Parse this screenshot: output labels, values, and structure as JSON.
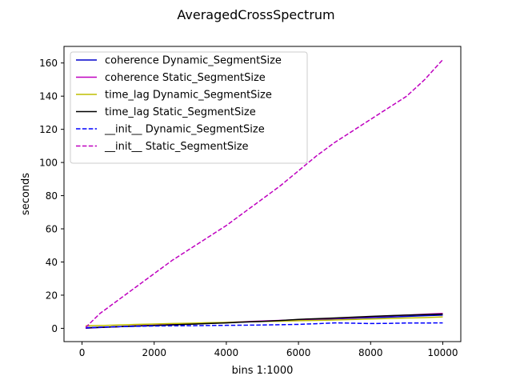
{
  "chart_data": {
    "type": "line",
    "title": "AveragedCrossSpectrum",
    "xlabel": "bins 1:1000",
    "ylabel": "seconds",
    "xlim": [
      -500,
      10500
    ],
    "ylim": [
      -8,
      170
    ],
    "xticks": [
      0,
      2000,
      4000,
      6000,
      8000,
      10000
    ],
    "yticks": [
      0,
      20,
      40,
      60,
      80,
      100,
      120,
      140,
      160
    ],
    "grid": false,
    "legend_position": "upper-left",
    "x": [
      100,
      500,
      1000,
      1500,
      2000,
      2500,
      3000,
      3500,
      4000,
      4500,
      5000,
      5500,
      6000,
      6500,
      7000,
      7500,
      8000,
      8500,
      9000,
      9500,
      10000
    ],
    "series": [
      {
        "name": "coherence Dynamic_SegmentSize",
        "color": "#0000cc",
        "dash": "solid",
        "values": [
          0.1,
          0.5,
          1.0,
          1.4,
          1.8,
          2.1,
          2.5,
          3.0,
          3.4,
          3.8,
          4.2,
          4.6,
          5.0,
          5.3,
          5.7,
          6.1,
          6.5,
          6.8,
          7.2,
          7.6,
          8.0
        ]
      },
      {
        "name": "coherence Static_SegmentSize",
        "color": "#bf00bf",
        "dash": "solid",
        "values": [
          0.2,
          0.6,
          1.0,
          1.5,
          1.9,
          2.3,
          2.7,
          3.1,
          3.5,
          4.0,
          4.4,
          4.8,
          5.2,
          5.6,
          6.0,
          6.5,
          7.0,
          7.5,
          8.0,
          8.5,
          9.0
        ]
      },
      {
        "name": "time_lag Dynamic_SegmentSize",
        "color": "#bfbf00",
        "dash": "solid",
        "values": [
          1.5,
          1.7,
          2.0,
          2.4,
          2.6,
          2.9,
          3.1,
          3.4,
          3.6,
          3.9,
          4.1,
          4.3,
          4.6,
          4.8,
          5.0,
          5.3,
          5.6,
          5.9,
          6.2,
          6.5,
          6.9
        ]
      },
      {
        "name": "time_lag Static_SegmentSize",
        "color": "#000000",
        "dash": "solid",
        "values": [
          0.3,
          0.6,
          1.0,
          1.4,
          1.7,
          2.1,
          2.5,
          2.9,
          3.3,
          3.8,
          4.2,
          4.7,
          5.4,
          5.8,
          6.2,
          6.7,
          7.2,
          7.6,
          8.0,
          8.3,
          8.6
        ]
      },
      {
        "name": "__init__ Dynamic_SegmentSize",
        "color": "#0000ff",
        "dash": "dashed",
        "values": [
          0.4,
          0.7,
          1.0,
          1.2,
          1.4,
          1.5,
          1.6,
          1.7,
          1.8,
          1.9,
          2.0,
          2.2,
          2.4,
          2.8,
          3.3,
          3.1,
          2.9,
          3.0,
          3.2,
          3.2,
          3.3
        ]
      },
      {
        "name": "__init__ Static_SegmentSize",
        "color": "#bf00bf",
        "dash": "dashed",
        "values": [
          0.5,
          9,
          17,
          25,
          33,
          41,
          48,
          55,
          62,
          70,
          78,
          86,
          95,
          104,
          112,
          119,
          126,
          133,
          140,
          150,
          162
        ]
      }
    ]
  }
}
